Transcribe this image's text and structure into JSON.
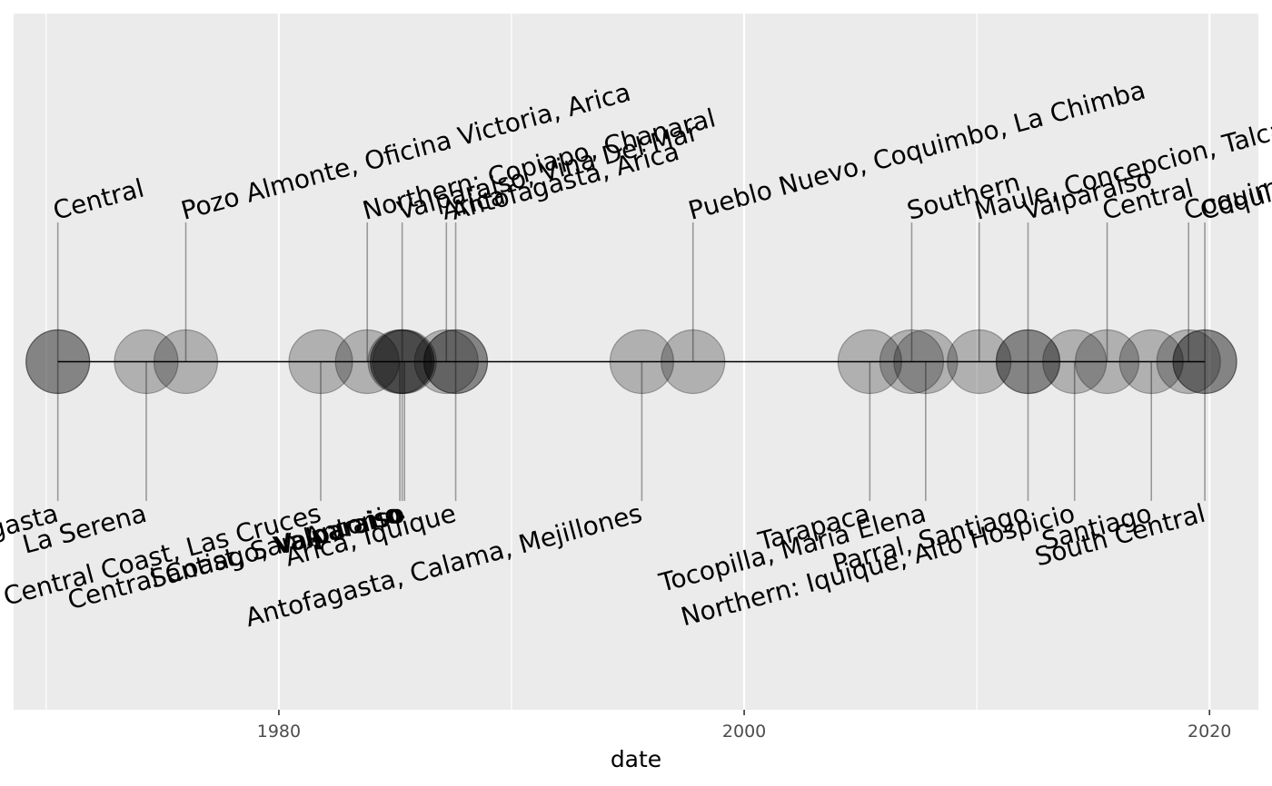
{
  "chart_data": {
    "type": "scatter",
    "title": "",
    "xlabel": "date",
    "ylabel": "",
    "x_ticks": [
      "1980",
      "2000",
      "2020"
    ],
    "xlim": [
      1968.6,
      2022.1
    ],
    "ylim": [
      -2,
      2
    ],
    "grid": true,
    "colors": {
      "panel": "#ebebeb",
      "grid": "#ffffff",
      "point": "#000000",
      "segment": "#999999",
      "timeline": "#000000"
    },
    "timeline": {
      "start": 1970.5,
      "end": 2019.8,
      "y": 0
    },
    "points": [
      {
        "x": 1970.5,
        "y": -0.8,
        "label": "Antofagasta"
      },
      {
        "x": 1970.5,
        "y": 0.8,
        "label": "Central"
      },
      {
        "x": 1974.3,
        "y": -0.8,
        "label": "La Serena"
      },
      {
        "x": 1976.0,
        "y": 0.8,
        "label": "Pozo Almonte, Oficina Victoria, Arica"
      },
      {
        "x": 1981.8,
        "y": -0.8,
        "label": "Central Coast, Las Cruces"
      },
      {
        "x": 1983.8,
        "y": 0.8,
        "label": "Northern:  Copiapo, Chanaral"
      },
      {
        "x": 1985.2,
        "y": -0.8,
        "label": "Central Coast, San Antonio"
      },
      {
        "x": 1985.3,
        "y": 0.8,
        "label": "Valparaiso, Vina Del Mar"
      },
      {
        "x": 1985.3,
        "y": -0.8,
        "label": "Santiago, Valparaiso"
      },
      {
        "x": 1985.4,
        "y": -0.8,
        "label": "Valparaiso"
      },
      {
        "x": 1987.2,
        "y": 0.8,
        "label": "Arica"
      },
      {
        "x": 1987.6,
        "y": 0.8,
        "label": "Antofagasta, Arica"
      },
      {
        "x": 1987.6,
        "y": -0.8,
        "label": "Arica, Iquique"
      },
      {
        "x": 1995.6,
        "y": -0.8,
        "label": "Antofagasta, Calama, Mejillones"
      },
      {
        "x": 1997.8,
        "y": 0.8,
        "label": "Pueblo Nuevo, Coquimbo, La Chimba"
      },
      {
        "x": 2005.4,
        "y": -0.8,
        "label": "Tarapaca"
      },
      {
        "x": 2007.2,
        "y": 0.8,
        "label": "Southern"
      },
      {
        "x": 2007.8,
        "y": -0.8,
        "label": "Tocopilla, Maria Elena"
      },
      {
        "x": 2010.1,
        "y": 0.8,
        "label": "Maule, Concepcion, Talcahuano"
      },
      {
        "x": 2012.2,
        "y": -0.8,
        "label": "Parral, Santiago"
      },
      {
        "x": 2012.2,
        "y": 0.8,
        "label": "Valparaiso"
      },
      {
        "x": 2014.2,
        "y": -0.8,
        "label": "Northern:  Iquique, Alto Hospicio"
      },
      {
        "x": 2015.6,
        "y": 0.8,
        "label": "Central"
      },
      {
        "x": 2017.5,
        "y": -0.8,
        "label": "Santiago"
      },
      {
        "x": 2019.1,
        "y": 0.8,
        "label": "Coquimbo"
      },
      {
        "x": 2019.8,
        "y": -0.8,
        "label": "South Central"
      },
      {
        "x": 2019.8,
        "y": 0.8,
        "label": "Coquimbo"
      }
    ]
  }
}
